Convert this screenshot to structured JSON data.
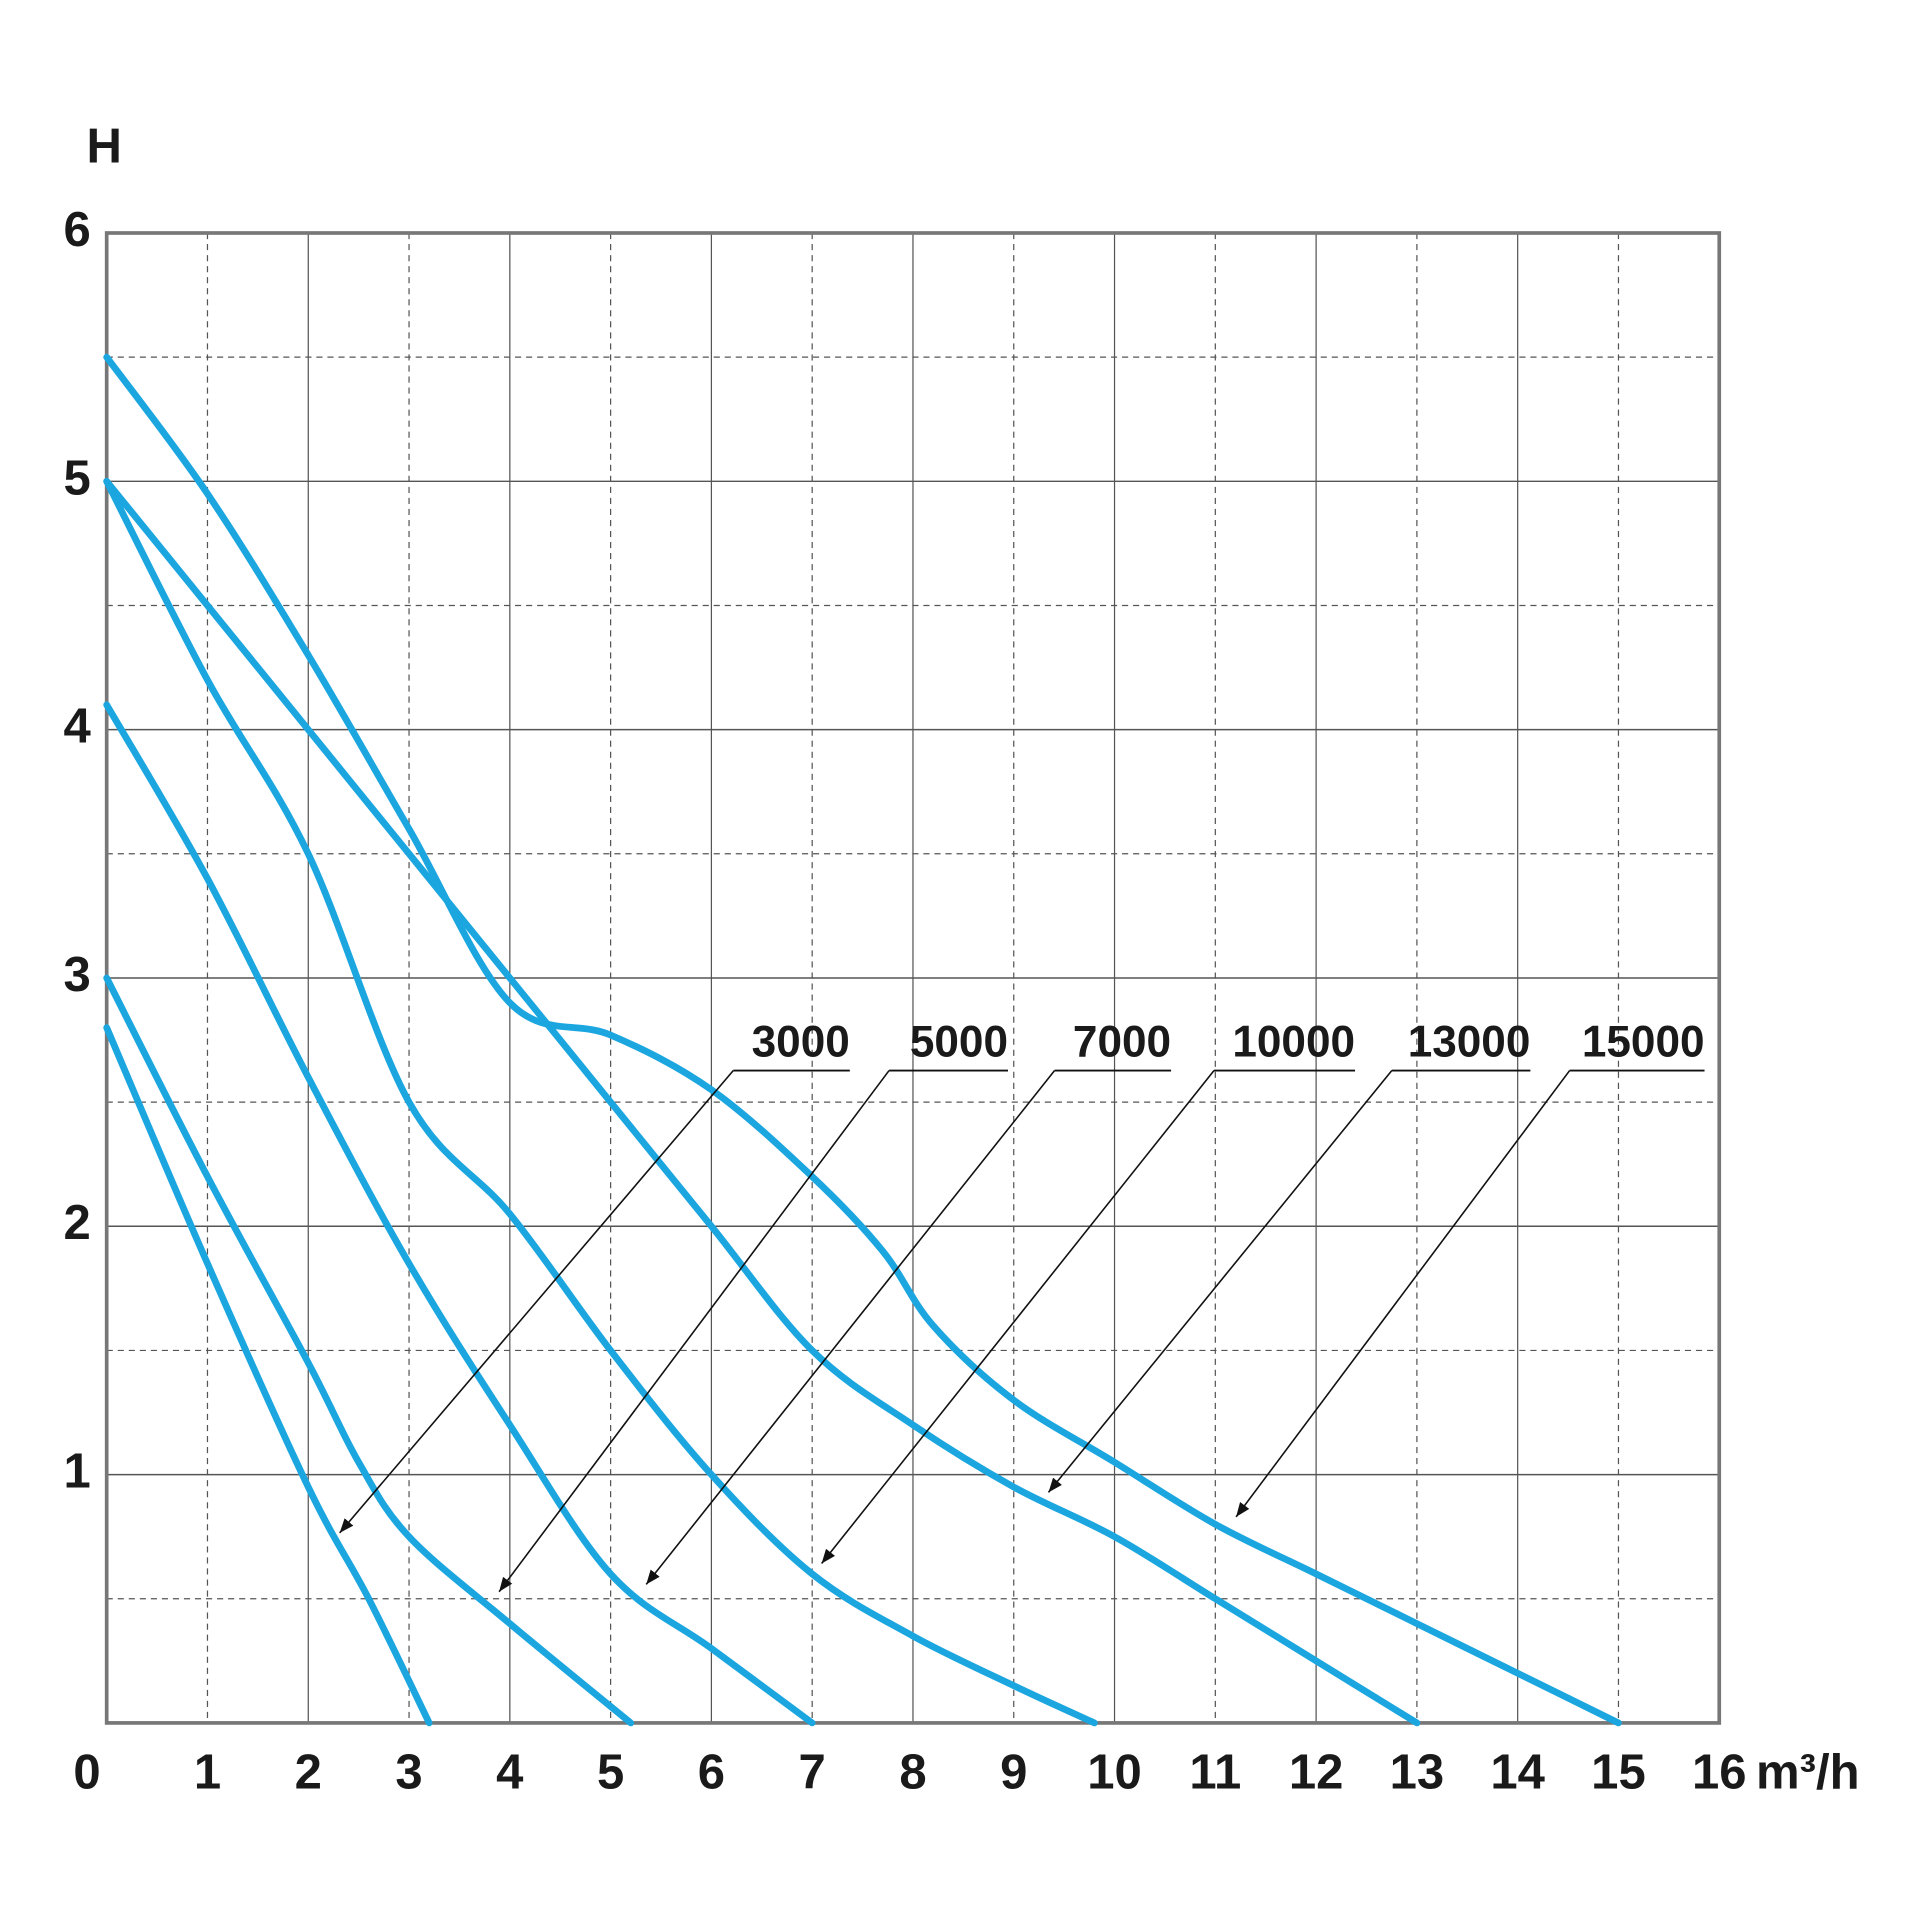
{
  "chart_data": {
    "type": "line",
    "y_label": "H",
    "x_label": "m³/h",
    "xlim": [
      0,
      16
    ],
    "ylim": [
      0,
      6
    ],
    "xticks": [
      0,
      1,
      2,
      3,
      4,
      5,
      6,
      7,
      8,
      9,
      10,
      11,
      12,
      13,
      14,
      15,
      16
    ],
    "yticks": [
      1,
      2,
      3,
      4,
      5,
      6
    ],
    "y_minor_grid": [
      0.5,
      1.5,
      2.5,
      3.5,
      4.5,
      5.5
    ],
    "grid": true,
    "series": [
      {
        "name": "3000",
        "color": "#1ba6e0",
        "x": [
          0,
          1,
          2,
          2.6,
          3.2
        ],
        "values": [
          2.8,
          1.85,
          0.95,
          0.5,
          0
        ]
      },
      {
        "name": "5000",
        "color": "#1ba6e0",
        "x": [
          0,
          1,
          2,
          2.5,
          3,
          4,
          5.2
        ],
        "values": [
          3,
          2.2,
          1.45,
          1.05,
          0.75,
          0.4,
          0
        ]
      },
      {
        "name": "7000",
        "color": "#1ba6e0",
        "x": [
          0,
          1,
          2,
          3,
          4,
          5,
          6,
          7
        ],
        "values": [
          4.1,
          3.4,
          2.6,
          1.85,
          1.2,
          0.6,
          0.3,
          0
        ]
      },
      {
        "name": "10000",
        "color": "#1ba6e0",
        "x": [
          0,
          1,
          2,
          3,
          4,
          5,
          6,
          7,
          8,
          9,
          9.8
        ],
        "values": [
          5,
          4.2,
          3.5,
          2.5,
          2.05,
          1.5,
          1.0,
          0.6,
          0.35,
          0.15,
          0
        ]
      },
      {
        "name": "13000",
        "color": "#1ba6e0",
        "x": [
          0,
          1,
          2,
          3,
          4,
          5,
          6,
          7,
          8,
          9,
          10,
          11,
          12,
          13
        ],
        "values": [
          5,
          4.5,
          4,
          3.5,
          3,
          2.5,
          2.0,
          1.5,
          1.2,
          0.95,
          0.75,
          0.5,
          0.25,
          0
        ]
      },
      {
        "name": "15000",
        "color": "#1ba6e0",
        "x": [
          0,
          1,
          2,
          3,
          4,
          5,
          6,
          7,
          7.7,
          8.2,
          9,
          10,
          11,
          12,
          13,
          14,
          15
        ],
        "values": [
          5.5,
          4.95,
          4.3,
          3.6,
          2.9,
          2.77,
          2.55,
          2.2,
          1.9,
          1.6,
          1.3,
          1.05,
          0.8,
          0.6,
          0.4,
          0.2,
          0
        ]
      }
    ]
  }
}
